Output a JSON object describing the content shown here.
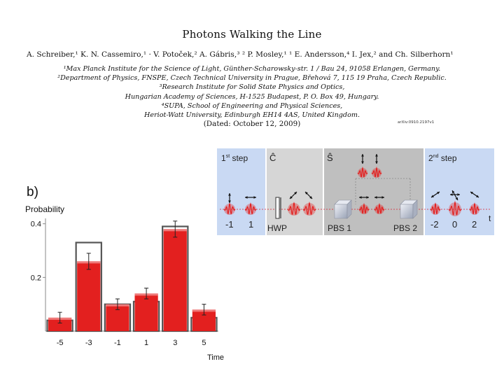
{
  "paper": {
    "title": "Photons Walking the Line",
    "authors": "A. Schreiber,¹ K. N. Cassemiro,¹ · V. Potoček,² A. Gábris,³ ² P. Mosley,¹ ¹ E. Andersson,⁴ I. Jex,² and Ch. Silberhorn¹",
    "affiliations": [
      "¹Max Planck Institute for the Science of Light, Günther-Scharowsky-str. 1 / Bau 24, 91058 Erlangen, Germany.",
      "²Department of Physics, FNSPE, Czech Technical University in Prague, Břehová 7, 115 19 Praha, Czech Republic.",
      "³Research Institute for Solid State Physics and Optics,",
      "Hungarian Academy of Sciences, H-1525 Budapest, P. O. Box 49, Hungary.",
      "⁴SUPA, School of Engineering and Physical Sciences,",
      "Heriot-Watt University, Edinburgh EH14 4AS, United Kingdom."
    ],
    "dated": "(Dated: October 12, 2009)",
    "arxiv_id": "arXiv:0910.2197v1"
  },
  "chart_data": {
    "type": "bar",
    "panel_label": "b)",
    "ylabel": "Probability",
    "xlabel": "Time",
    "ylim": [
      0,
      0.42
    ],
    "yticks": [
      0.2,
      0.4
    ],
    "ytick_labels": [
      "0.2",
      "0.4"
    ],
    "categories": [
      "-5",
      "-3",
      "-1",
      "1",
      "3",
      "5"
    ],
    "series": [
      {
        "values": [
          0.05,
          0.26,
          0.1,
          0.14,
          0.38,
          0.08
        ],
        "errors": [
          0.02,
          0.03,
          0.02,
          0.02,
          0.03,
          0.02
        ],
        "color": "#e3201f"
      },
      {
        "values": [
          0.04,
          0.33,
          0.1,
          0.11,
          0.39,
          0.05
        ],
        "color": "#555555"
      }
    ]
  },
  "diagram": {
    "panels": [
      {
        "label": "1st step",
        "sup": "st",
        "base": "1",
        "rest": " step",
        "color": "#c9d9f3"
      },
      {
        "label": "Ĉ",
        "color": "#d6d6d6"
      },
      {
        "label": "Ŝ",
        "color": "#bfbfbf"
      },
      {
        "label": "2nd step",
        "sup": "nd",
        "base": "2",
        "rest": " step",
        "color": "#c9d9f3"
      }
    ],
    "position_labels_step1": [
      "-1",
      "1"
    ],
    "position_labels_step2": [
      "-2",
      "0",
      "2"
    ],
    "hwp_label": "HWP",
    "pbs1_label": "PBS 1",
    "pbs2_label": "PBS 2",
    "time_axis_label": "t",
    "pulse_color": "#e3201f"
  }
}
